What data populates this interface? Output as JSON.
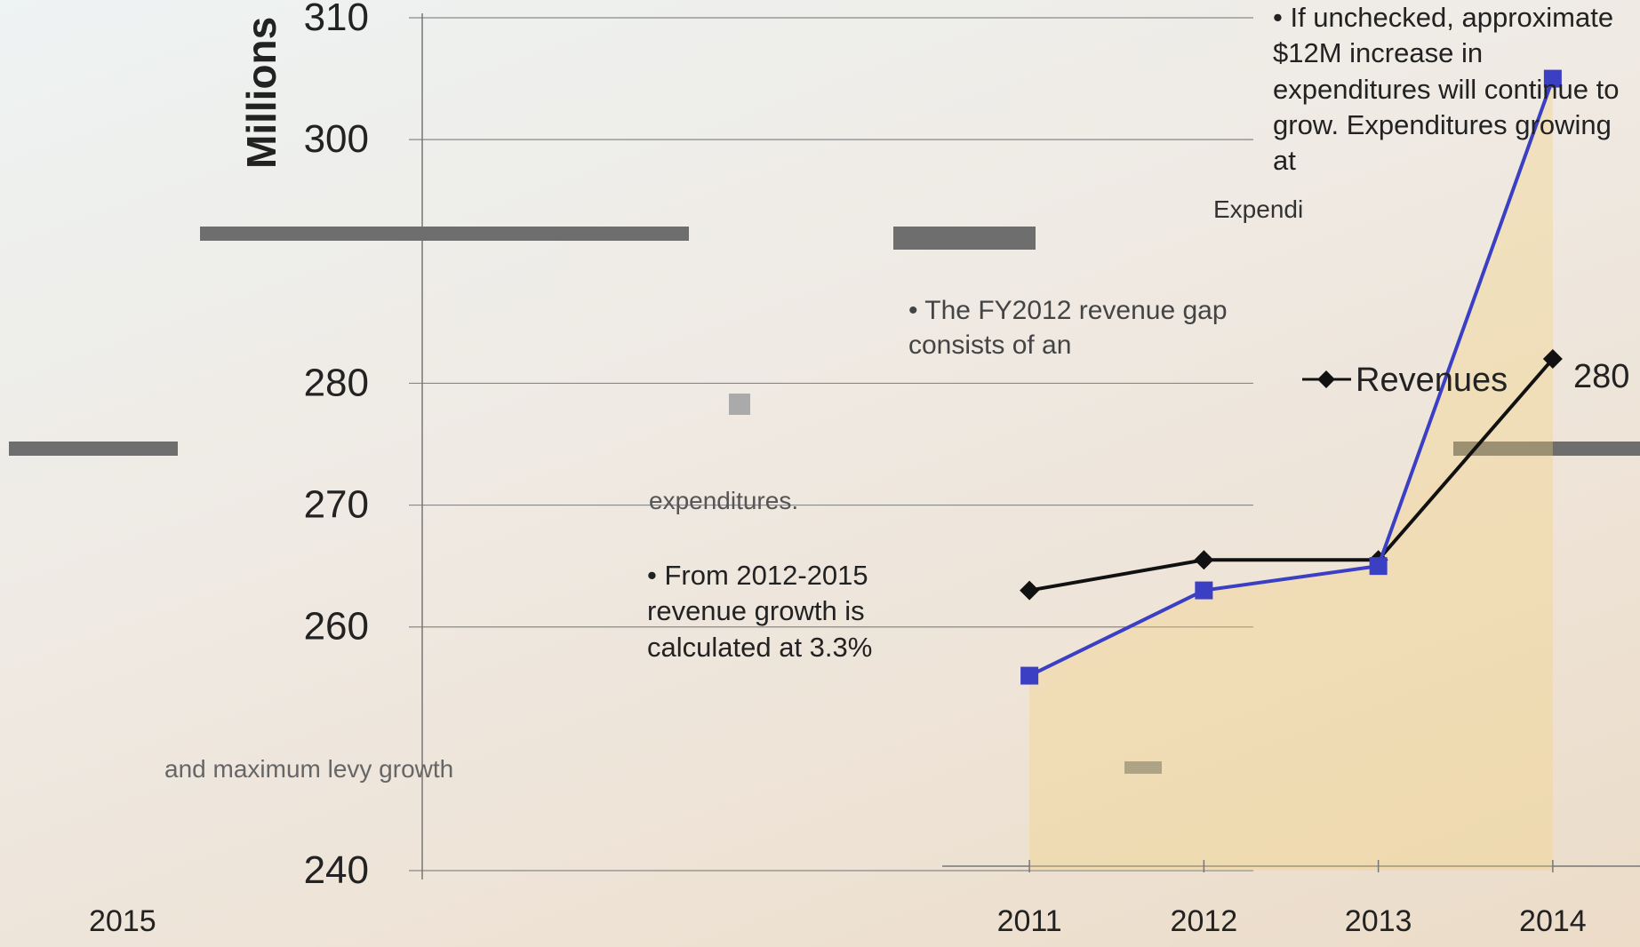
{
  "chart_data": {
    "type": "line",
    "ylabel": "Millions",
    "ylim": [
      240,
      310
    ],
    "yticks": [
      240,
      260,
      270,
      280,
      300,
      310
    ],
    "x": [
      "2011",
      "2012",
      "2013",
      "2014"
    ],
    "series": [
      {
        "name": "Revenues",
        "values": [
          263.0,
          265.5,
          265.5,
          282.0
        ]
      },
      {
        "name": "",
        "values": [
          256.0,
          263.0,
          265.0,
          305.0
        ]
      }
    ],
    "legend_label": "Revenues",
    "legend_value": "280",
    "label_2015": "2015",
    "label_expend": "Expendi",
    "callouts": {
      "unchecked": "• If unchecked, approximate $12M increase in expenditures will continue to grow. Expenditures growing at",
      "gap": "• The FY2012 revenue gap consists of an",
      "gap_tail": "expenditures.",
      "growth": "• From 2012-2015 revenue growth is calculated at 3.3%",
      "levy": "and maximum levy growth"
    }
  },
  "colors": {
    "revenues": "#111111",
    "expenditures": "#3a3fc4",
    "fill": "#f3d07a",
    "grid": "#888888",
    "bar": "#6e6e6e"
  }
}
